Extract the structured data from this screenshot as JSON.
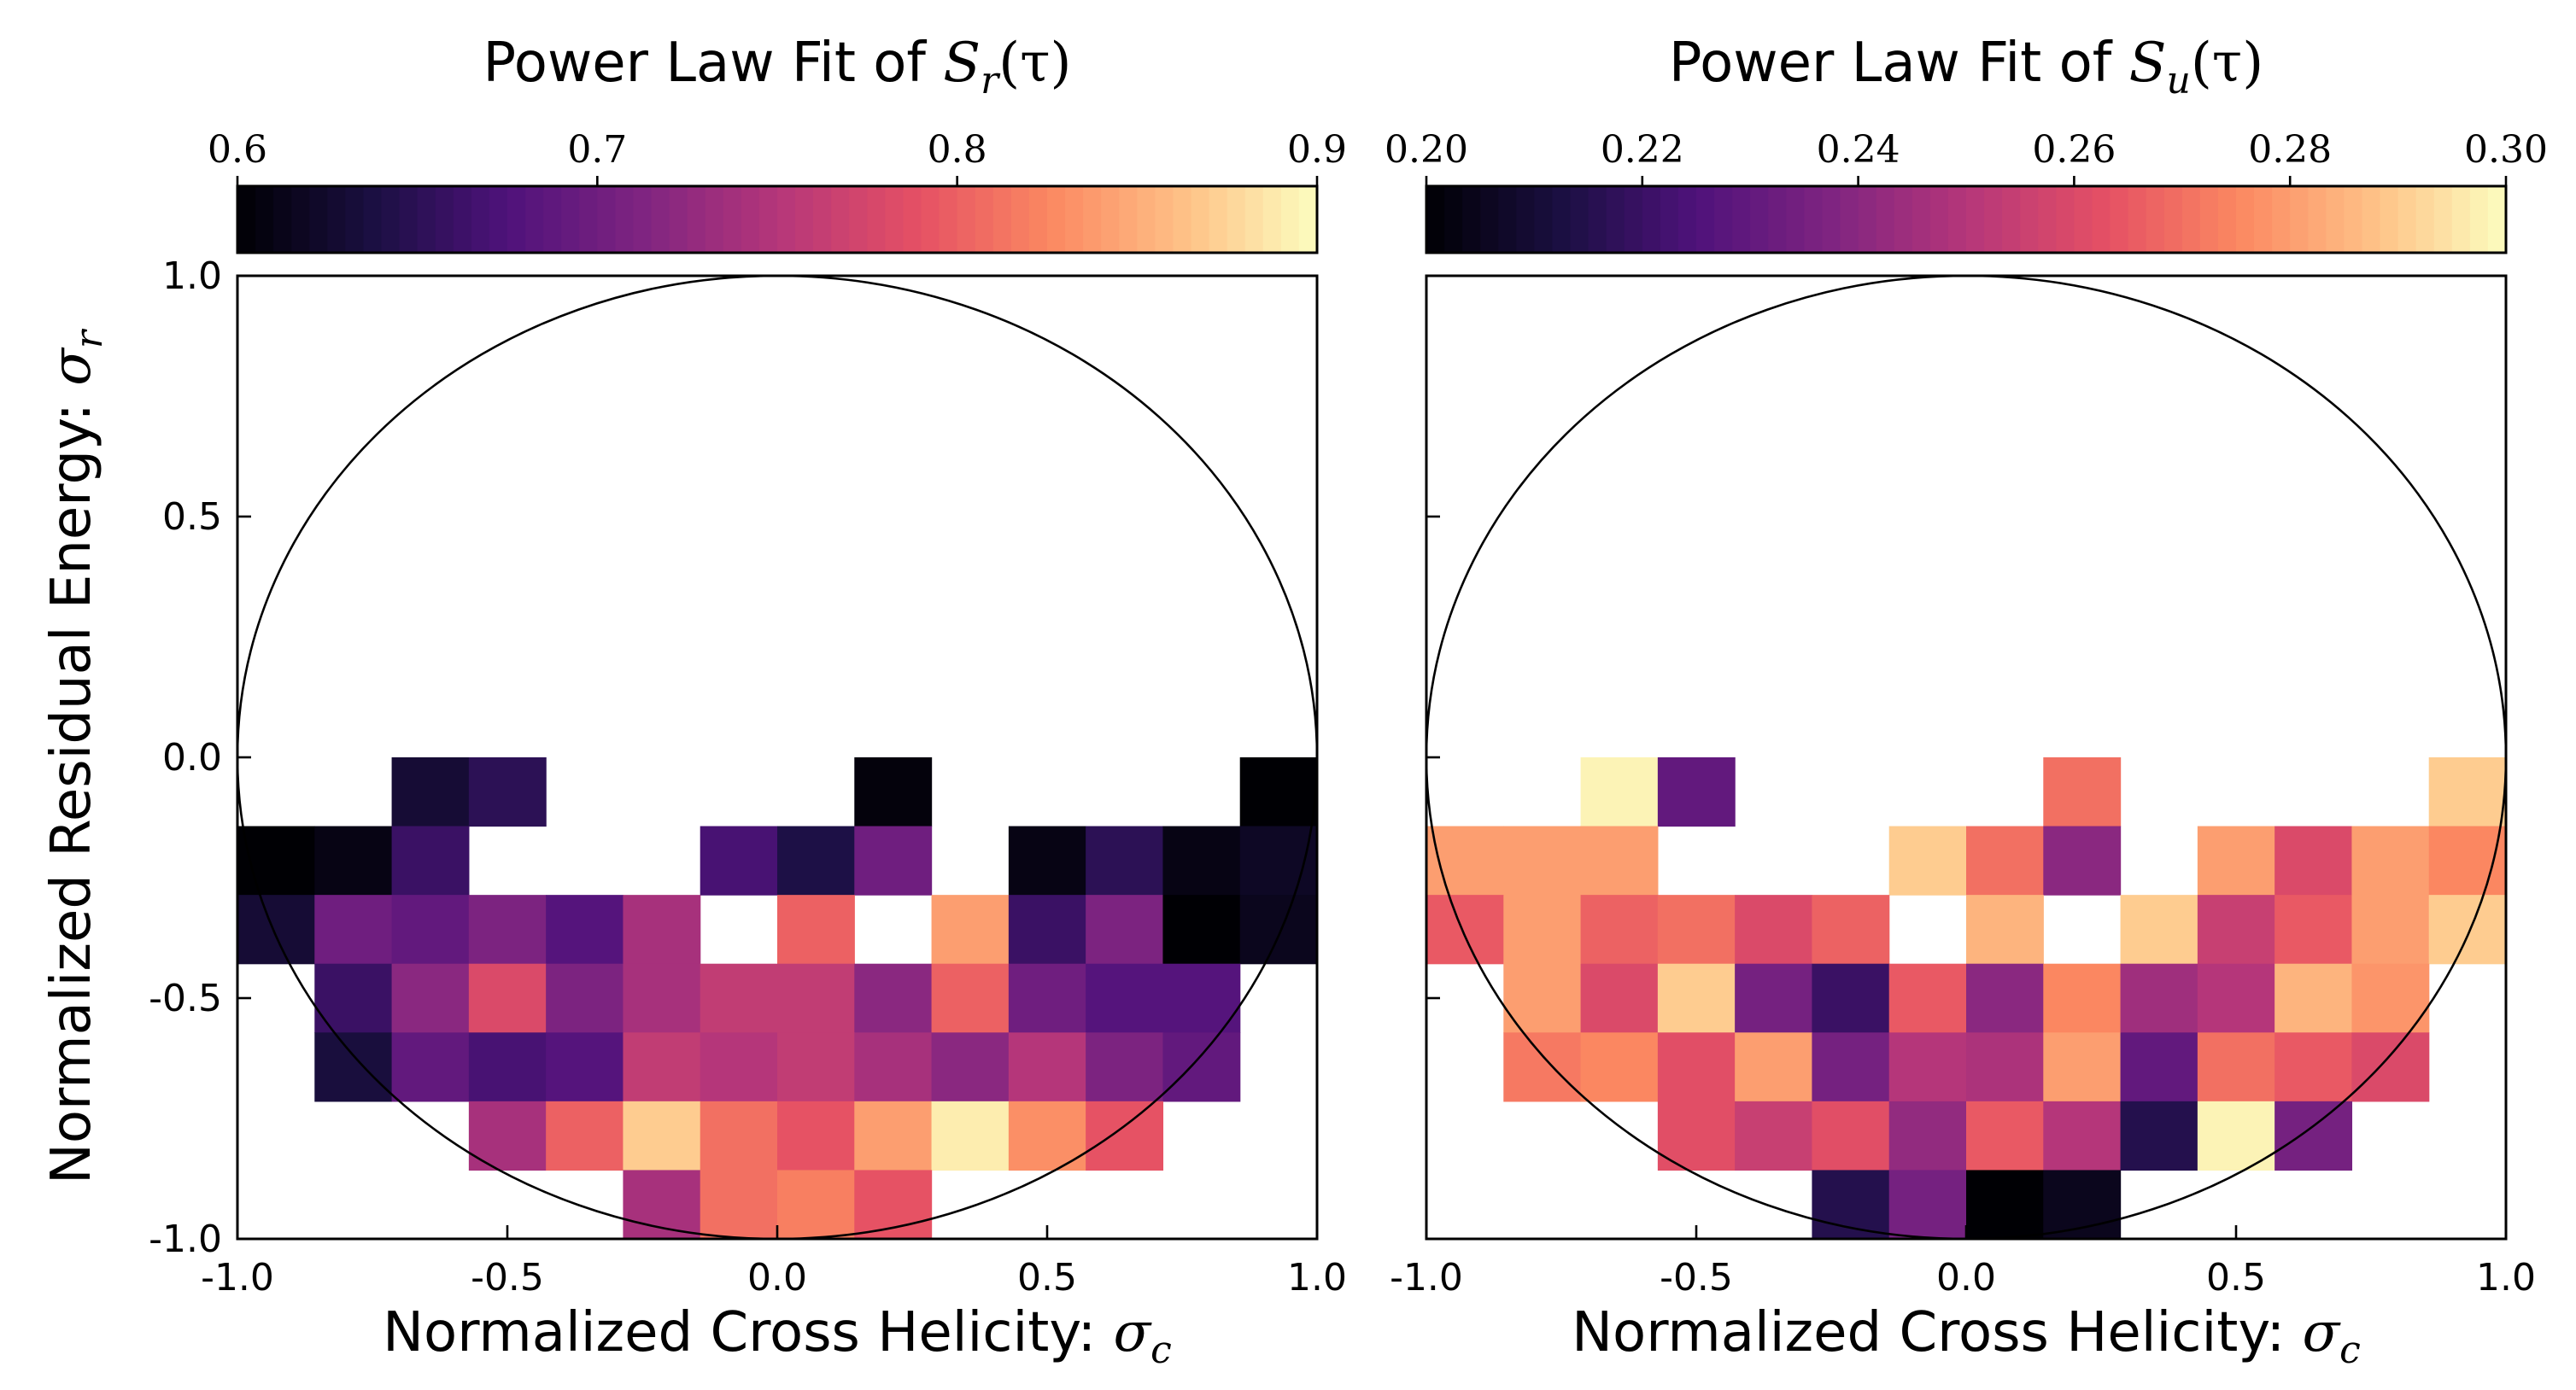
{
  "chart_data": [
    {
      "type": "heatmap",
      "title": "Power Law Fit of S_r(τ)",
      "title_text": "Power Law Fit of ",
      "title_symbol": "S",
      "title_sub": "r",
      "title_arg": "(τ)",
      "xlabel_text": "Normalized Cross Helicity: ",
      "xlabel_symbol": "σ",
      "xlabel_sub": "c",
      "ylabel_text": "Normalized Residual Energy: ",
      "ylabel_symbol": "σ",
      "ylabel_sub": "r",
      "xlim": [
        -1.0,
        1.0
      ],
      "ylim": [
        -1.0,
        1.0
      ],
      "x_ticks": [
        "-1.0",
        "-0.5",
        "0.0",
        "0.5",
        "1.0"
      ],
      "y_ticks": [
        "-1.0",
        "-0.5",
        "0.0",
        "0.5",
        "1.0"
      ],
      "show_y_tick_labels": true,
      "colormap": "magma",
      "colorbar": {
        "min": 0.6,
        "max": 0.9,
        "ticks": [
          "0.6",
          "0.7",
          "0.8",
          "0.9"
        ]
      },
      "bins": 14,
      "grid_rows_top_to_bottom": [
        [
          null,
          null,
          0.63,
          0.65,
          null,
          null,
          null,
          null,
          0.605,
          null,
          null,
          null,
          null,
          0.6
        ],
        [
          0.6,
          0.61,
          0.66,
          null,
          null,
          null,
          0.67,
          0.64,
          0.7,
          null,
          0.61,
          0.65,
          0.61,
          0.62
        ],
        [
          0.63,
          0.7,
          0.69,
          0.71,
          0.68,
          0.74,
          null,
          0.8,
          null,
          0.84,
          0.66,
          0.71,
          0.6,
          0.615
        ],
        [
          null,
          0.66,
          0.72,
          0.78,
          0.71,
          0.74,
          0.76,
          0.76,
          0.72,
          0.8,
          0.7,
          0.68,
          0.68,
          null
        ],
        [
          null,
          0.635,
          0.69,
          0.67,
          0.68,
          0.76,
          0.75,
          0.76,
          0.74,
          0.72,
          0.75,
          0.71,
          0.69,
          null
        ],
        [
          null,
          null,
          null,
          0.74,
          0.8,
          0.87,
          0.81,
          0.79,
          0.84,
          0.89,
          0.83,
          0.79,
          null,
          null
        ],
        [
          null,
          null,
          null,
          null,
          null,
          0.74,
          0.81,
          0.82,
          0.79,
          null,
          null,
          null,
          null,
          null
        ]
      ]
    },
    {
      "type": "heatmap",
      "title": "Power Law Fit of S_u(τ)",
      "title_text": "Power Law Fit of ",
      "title_symbol": "S",
      "title_sub": "u",
      "title_arg": "(τ)",
      "xlabel_text": "Normalized Cross Helicity: ",
      "xlabel_symbol": "σ",
      "xlabel_sub": "c",
      "xlim": [
        -1.0,
        1.0
      ],
      "ylim": [
        -1.0,
        1.0
      ],
      "x_ticks": [
        "-1.0",
        "-0.5",
        "0.0",
        "0.5",
        "1.0"
      ],
      "y_ticks": [
        "-1.0",
        "-0.5",
        "0.0",
        "0.5",
        "1.0"
      ],
      "show_y_tick_labels": false,
      "colormap": "magma",
      "colorbar": {
        "min": 0.2,
        "max": 0.3,
        "ticks": [
          "0.20",
          "0.22",
          "0.24",
          "0.26",
          "0.28",
          "0.30"
        ]
      },
      "bins": 14,
      "grid_rows_top_to_bottom": [
        [
          null,
          null,
          0.298,
          0.23,
          null,
          null,
          null,
          null,
          0.27,
          null,
          null,
          null,
          null,
          0.29
        ],
        [
          0.28,
          0.28,
          0.28,
          null,
          null,
          null,
          0.29,
          0.27,
          0.24,
          null,
          0.28,
          0.26,
          0.28,
          0.275
        ],
        [
          0.265,
          0.28,
          0.267,
          0.27,
          0.26,
          0.267,
          null,
          0.285,
          null,
          0.29,
          0.255,
          0.265,
          0.28,
          0.29
        ],
        [
          null,
          0.28,
          0.26,
          0.29,
          0.235,
          0.22,
          0.265,
          0.24,
          0.275,
          0.245,
          0.25,
          0.285,
          0.278,
          null
        ],
        [
          null,
          0.272,
          0.275,
          0.262,
          0.28,
          0.235,
          0.25,
          0.248,
          0.28,
          0.23,
          0.27,
          0.265,
          0.26,
          null
        ],
        [
          null,
          null,
          null,
          0.262,
          0.255,
          0.262,
          0.242,
          0.265,
          0.25,
          0.215,
          0.298,
          0.235,
          null,
          null
        ],
        [
          null,
          null,
          null,
          null,
          null,
          0.215,
          0.235,
          0.2,
          0.205,
          null,
          null,
          null,
          null,
          null
        ]
      ]
    }
  ]
}
